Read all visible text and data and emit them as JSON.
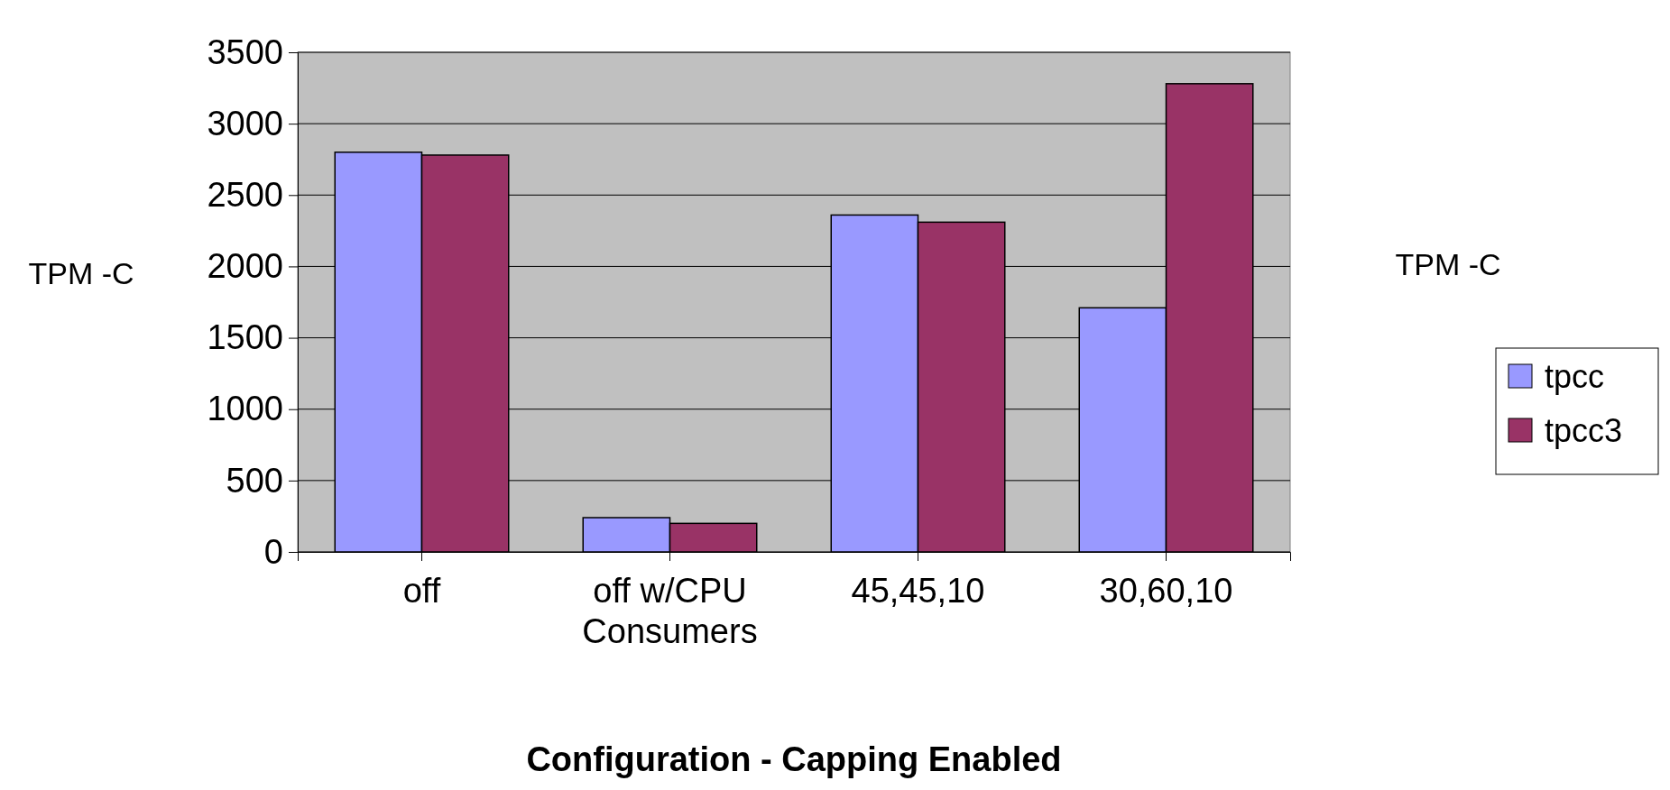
{
  "chart_data": {
    "type": "bar",
    "xlabel": "Configuration - Capping Enabled",
    "ylabel": "TPM -C",
    "y2label": "TPM -C",
    "categories": [
      "off",
      "off w/CPU Consumers",
      "45,45,10",
      "30,60,10"
    ],
    "series": [
      {
        "name": "tpcc",
        "color": "#9999ff",
        "values": [
          2800,
          240,
          2360,
          1710
        ]
      },
      {
        "name": "tpcc3",
        "color": "#993366",
        "values": [
          2780,
          200,
          2310,
          3280
        ]
      }
    ],
    "ylim": [
      0,
      3500
    ],
    "yticks": [
      0,
      500,
      1000,
      1500,
      2000,
      2500,
      3000,
      3500
    ],
    "grid": "y",
    "legend": "right"
  }
}
